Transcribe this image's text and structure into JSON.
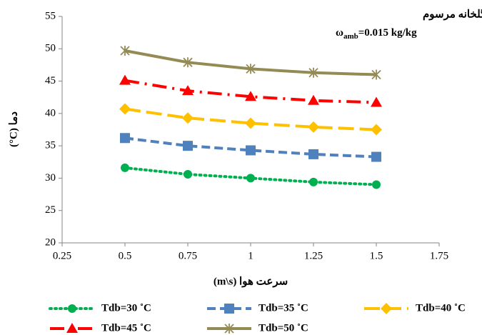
{
  "chart_data": {
    "type": "line",
    "annotation": {
      "title": "گلخانه مرسوم",
      "symbol": "ω",
      "subscript": "amb",
      "text": "=0.015 kg/kg"
    },
    "y_label": "دما (C°)",
    "x_label": "سرعت هوا (m\\s)",
    "x": [
      0.5,
      0.75,
      1,
      1.25,
      1.5
    ],
    "xlim": [
      0.25,
      1.75
    ],
    "xticks": [
      0.25,
      0.5,
      0.75,
      1,
      1.25,
      1.5,
      1.75
    ],
    "ylim": [
      20,
      55
    ],
    "yticks": [
      20,
      25,
      30,
      35,
      40,
      45,
      50,
      55
    ],
    "grid": false,
    "series": [
      {
        "name": "Tdb=30 ˚C",
        "color": "#00b050",
        "marker": "circle",
        "line_style": "dotted",
        "values": [
          31.6,
          30.6,
          30.0,
          29.4,
          29.0
        ]
      },
      {
        "name": "Tdb=35 ˚C",
        "color": "#4f81bd",
        "marker": "square",
        "line_style": "dashed",
        "values": [
          36.2,
          35.0,
          34.3,
          33.7,
          33.3
        ]
      },
      {
        "name": "Tdb=40 ˚C",
        "color": "#ffc000",
        "marker": "diamond",
        "line_style": "long-dash",
        "values": [
          40.7,
          39.3,
          38.5,
          37.9,
          37.5
        ]
      },
      {
        "name": "Tdb=45 ˚C",
        "color": "#ff0000",
        "marker": "triangle",
        "line_style": "dash-dot",
        "values": [
          45.1,
          43.5,
          42.6,
          42.0,
          41.7
        ]
      },
      {
        "name": "Tdb=50 ˚C",
        "color": "#948a54",
        "marker": "star",
        "line_style": "solid",
        "values": [
          49.7,
          47.9,
          46.9,
          46.3,
          46.0
        ]
      }
    ]
  }
}
